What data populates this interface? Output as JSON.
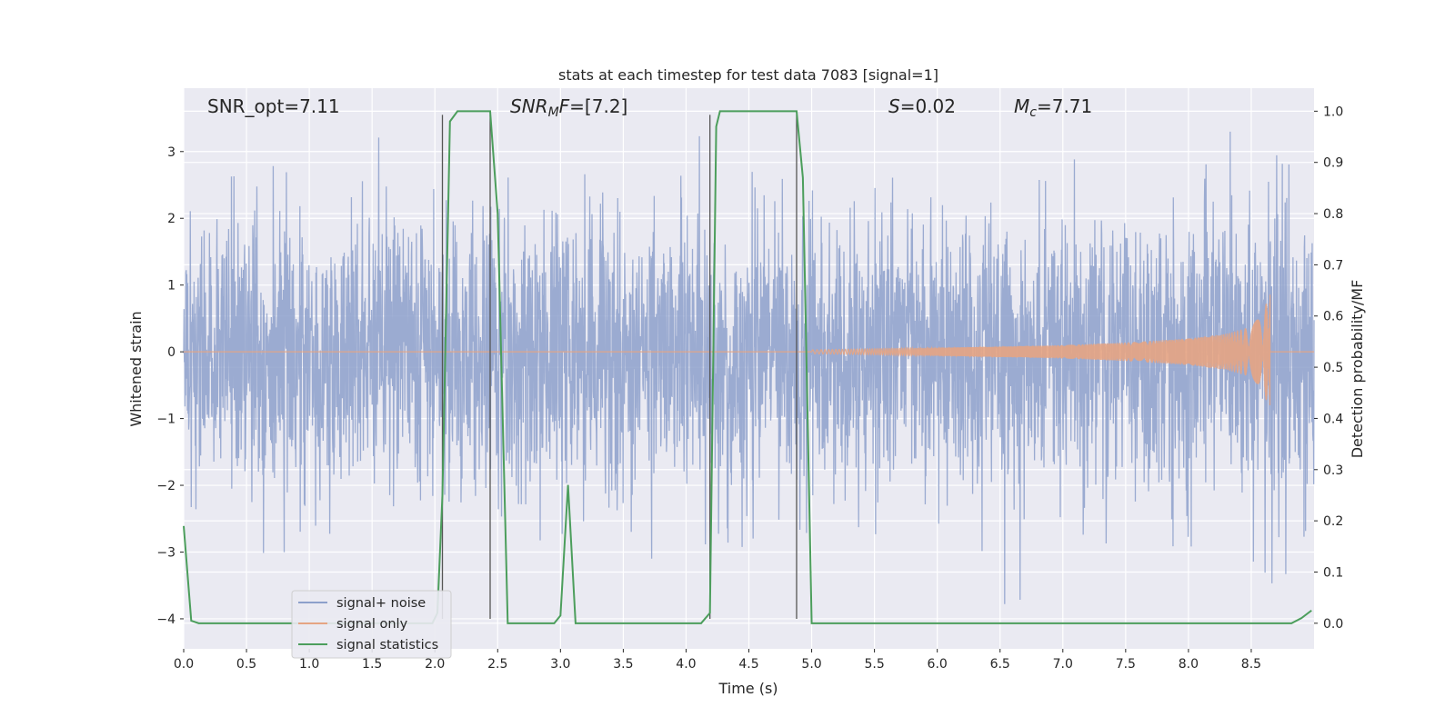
{
  "chart_data": {
    "type": "line",
    "title": "stats at each timestep for test data 7083 [signal=1]",
    "xlabel": "Time (s)",
    "ylabel": "Whitened strain",
    "ylabel_right": "Detection probability/MF",
    "xlim": [
      0.0,
      9.0
    ],
    "ylim": [
      -4.45,
      3.95
    ],
    "ylim_right": [
      -0.05,
      1.045
    ],
    "xticks": [
      0.0,
      0.5,
      1.0,
      1.5,
      2.0,
      2.5,
      3.0,
      3.5,
      4.0,
      4.5,
      5.0,
      5.5,
      6.0,
      6.5,
      7.0,
      7.5,
      8.0,
      8.5
    ],
    "xtick_labels": [
      "0.0",
      "0.5",
      "1.0",
      "1.5",
      "2.0",
      "2.5",
      "3.0",
      "3.5",
      "4.0",
      "4.5",
      "5.0",
      "5.5",
      "6.0",
      "6.5",
      "7.0",
      "7.5",
      "8.0",
      "8.5"
    ],
    "yticks": [
      -4,
      -3,
      -2,
      -1,
      0,
      1,
      2,
      3
    ],
    "ytick_labels": [
      "−4",
      "−3",
      "−2",
      "−1",
      "0",
      "1",
      "2",
      "3"
    ],
    "yticks_right": [
      0.0,
      0.1,
      0.2,
      0.3,
      0.4,
      0.5,
      0.6,
      0.7,
      0.8,
      0.9,
      1.0
    ],
    "ytick_labels_right": [
      "0.0",
      "0.1",
      "0.2",
      "0.3",
      "0.4",
      "0.5",
      "0.6",
      "0.7",
      "0.8",
      "0.9",
      "1.0"
    ],
    "grid": true,
    "legend_position": "lower-left",
    "annotations": [
      {
        "text": "SNR_opt=7.11",
        "x": 0.19,
        "y": 3.55
      },
      {
        "text": "SNR_MF=[7.2]",
        "x": 2.6,
        "y": 3.55
      },
      {
        "text": "S=0.02",
        "x": 5.6,
        "y": 3.55
      },
      {
        "text": "M_c=7.71",
        "x": 6.6,
        "y": 3.55
      }
    ],
    "series": [
      {
        "name": "signal+ noise",
        "color": "#8da0cb",
        "kind": "noise",
        "x_range": [
          0.0,
          9.0
        ],
        "amplitude_std": 1.0,
        "approx_min": -3.9,
        "approx_max": 3.5
      },
      {
        "name": "signal only",
        "color": "#e5a483",
        "kind": "chirp",
        "x_range": [
          5.0,
          8.65
        ],
        "envelope": [
          [
            5.0,
            0.03
          ],
          [
            6.0,
            0.06
          ],
          [
            7.0,
            0.1
          ],
          [
            7.5,
            0.14
          ],
          [
            8.0,
            0.2
          ],
          [
            8.3,
            0.27
          ],
          [
            8.5,
            0.38
          ],
          [
            8.6,
            0.62
          ],
          [
            8.65,
            0.9
          ]
        ],
        "flat_after": 0.0
      },
      {
        "name": "signal statistics",
        "color": "#4c9e5c",
        "axis": "right",
        "x": [
          0.0,
          0.06,
          0.12,
          1.98,
          2.02,
          2.06,
          2.12,
          2.18,
          2.44,
          2.5,
          2.58,
          2.95,
          3.0,
          3.06,
          3.12,
          4.12,
          4.19,
          4.24,
          4.27,
          4.88,
          4.93,
          5.0,
          8.82,
          8.9,
          8.98
        ],
        "y": [
          0.19,
          0.005,
          0.0,
          0.0,
          0.02,
          0.25,
          0.98,
          1.0,
          1.0,
          0.8,
          0.0,
          0.0,
          0.015,
          0.27,
          0.0,
          0.0,
          0.02,
          0.97,
          1.0,
          1.0,
          0.87,
          0.0,
          0.0,
          0.01,
          0.025
        ]
      }
    ],
    "vlines": [
      {
        "x": 2.06,
        "ymin": -4.0,
        "ymax": 3.55
      },
      {
        "x": 2.44,
        "ymin": -4.0,
        "ymax": 3.55
      },
      {
        "x": 4.19,
        "ymin": -4.0,
        "ymax": 3.55
      },
      {
        "x": 4.88,
        "ymin": -4.0,
        "ymax": 3.55
      }
    ],
    "colors": {
      "background": "#eaeaf2",
      "grid": "#ffffff",
      "vline": "#555555"
    }
  }
}
